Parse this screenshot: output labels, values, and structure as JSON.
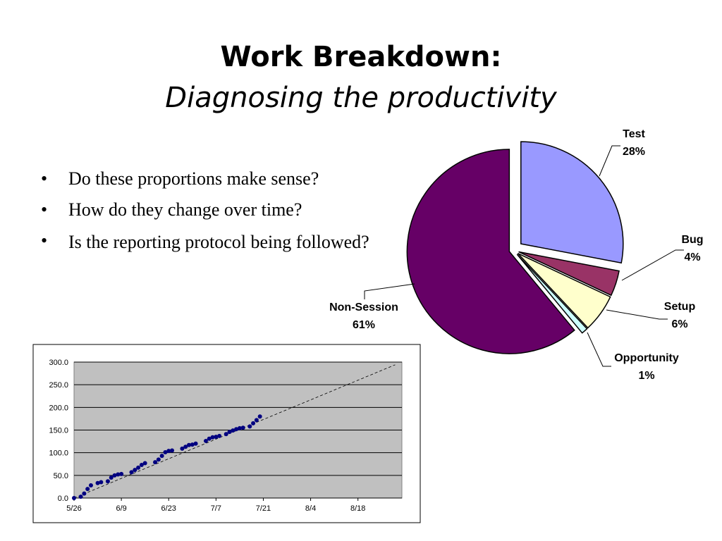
{
  "title": "Work Breakdown:",
  "subtitle": "Diagnosing the productivity",
  "bullets": [
    "Do these proportions make sense?",
    "How do they change over time?",
    "Is the reporting protocol being followed?"
  ],
  "chart_data": [
    {
      "type": "pie",
      "categories": [
        "Test",
        "Bug",
        "Setup",
        "Opportunity",
        "Non-Session"
      ],
      "values": [
        28,
        4,
        6,
        1,
        61
      ],
      "value_labels": [
        "28%",
        "4%",
        "6%",
        "1%",
        "61%"
      ],
      "colors": [
        "#9999ff",
        "#993366",
        "#ffffcc",
        "#ccffff",
        "#660066"
      ]
    },
    {
      "type": "scatter",
      "x": [
        "5/26",
        "5/28",
        "5/29",
        "5/30",
        "5/31",
        "6/2",
        "6/3",
        "6/5",
        "6/6",
        "6/7",
        "6/8",
        "6/9",
        "6/12",
        "6/13",
        "6/14",
        "6/15",
        "6/16",
        "6/19",
        "6/20",
        "6/21",
        "6/22",
        "6/23",
        "6/24",
        "6/27",
        "6/28",
        "6/29",
        "6/30",
        "7/1",
        "7/4",
        "7/5",
        "7/6",
        "7/7",
        "7/8",
        "7/10",
        "7/11",
        "7/12",
        "7/13",
        "7/14",
        "7/15",
        "7/17",
        "7/18",
        "7/19",
        "7/20"
      ],
      "values": [
        0,
        3,
        10,
        20,
        28,
        33,
        35,
        37,
        45,
        50,
        52,
        53,
        57,
        62,
        67,
        73,
        77,
        79,
        85,
        93,
        101,
        104,
        105,
        109,
        113,
        117,
        118,
        120,
        126,
        131,
        134,
        135,
        137,
        141,
        146,
        149,
        152,
        154,
        155,
        158,
        165,
        172,
        180
      ],
      "color": "#000080",
      "trend": {
        "x": [
          "5/26",
          "8/29"
        ],
        "values": [
          0,
          294
        ]
      },
      "xlim": [
        "5/26",
        "8/31"
      ],
      "xticks": [
        "5/26",
        "6/9",
        "6/23",
        "7/7",
        "7/21",
        "8/4",
        "8/18"
      ],
      "ylim": [
        0,
        300
      ],
      "yticks": [
        {
          "value": 0,
          "label": "0.0"
        },
        {
          "value": 50,
          "label": "50.0"
        },
        {
          "value": 100,
          "label": "100.0"
        },
        {
          "value": 150,
          "label": "150.0"
        },
        {
          "value": 200,
          "label": "200.0"
        },
        {
          "value": 250,
          "label": "250.0"
        },
        {
          "value": 300,
          "label": "300.0"
        }
      ],
      "grid": true
    }
  ]
}
